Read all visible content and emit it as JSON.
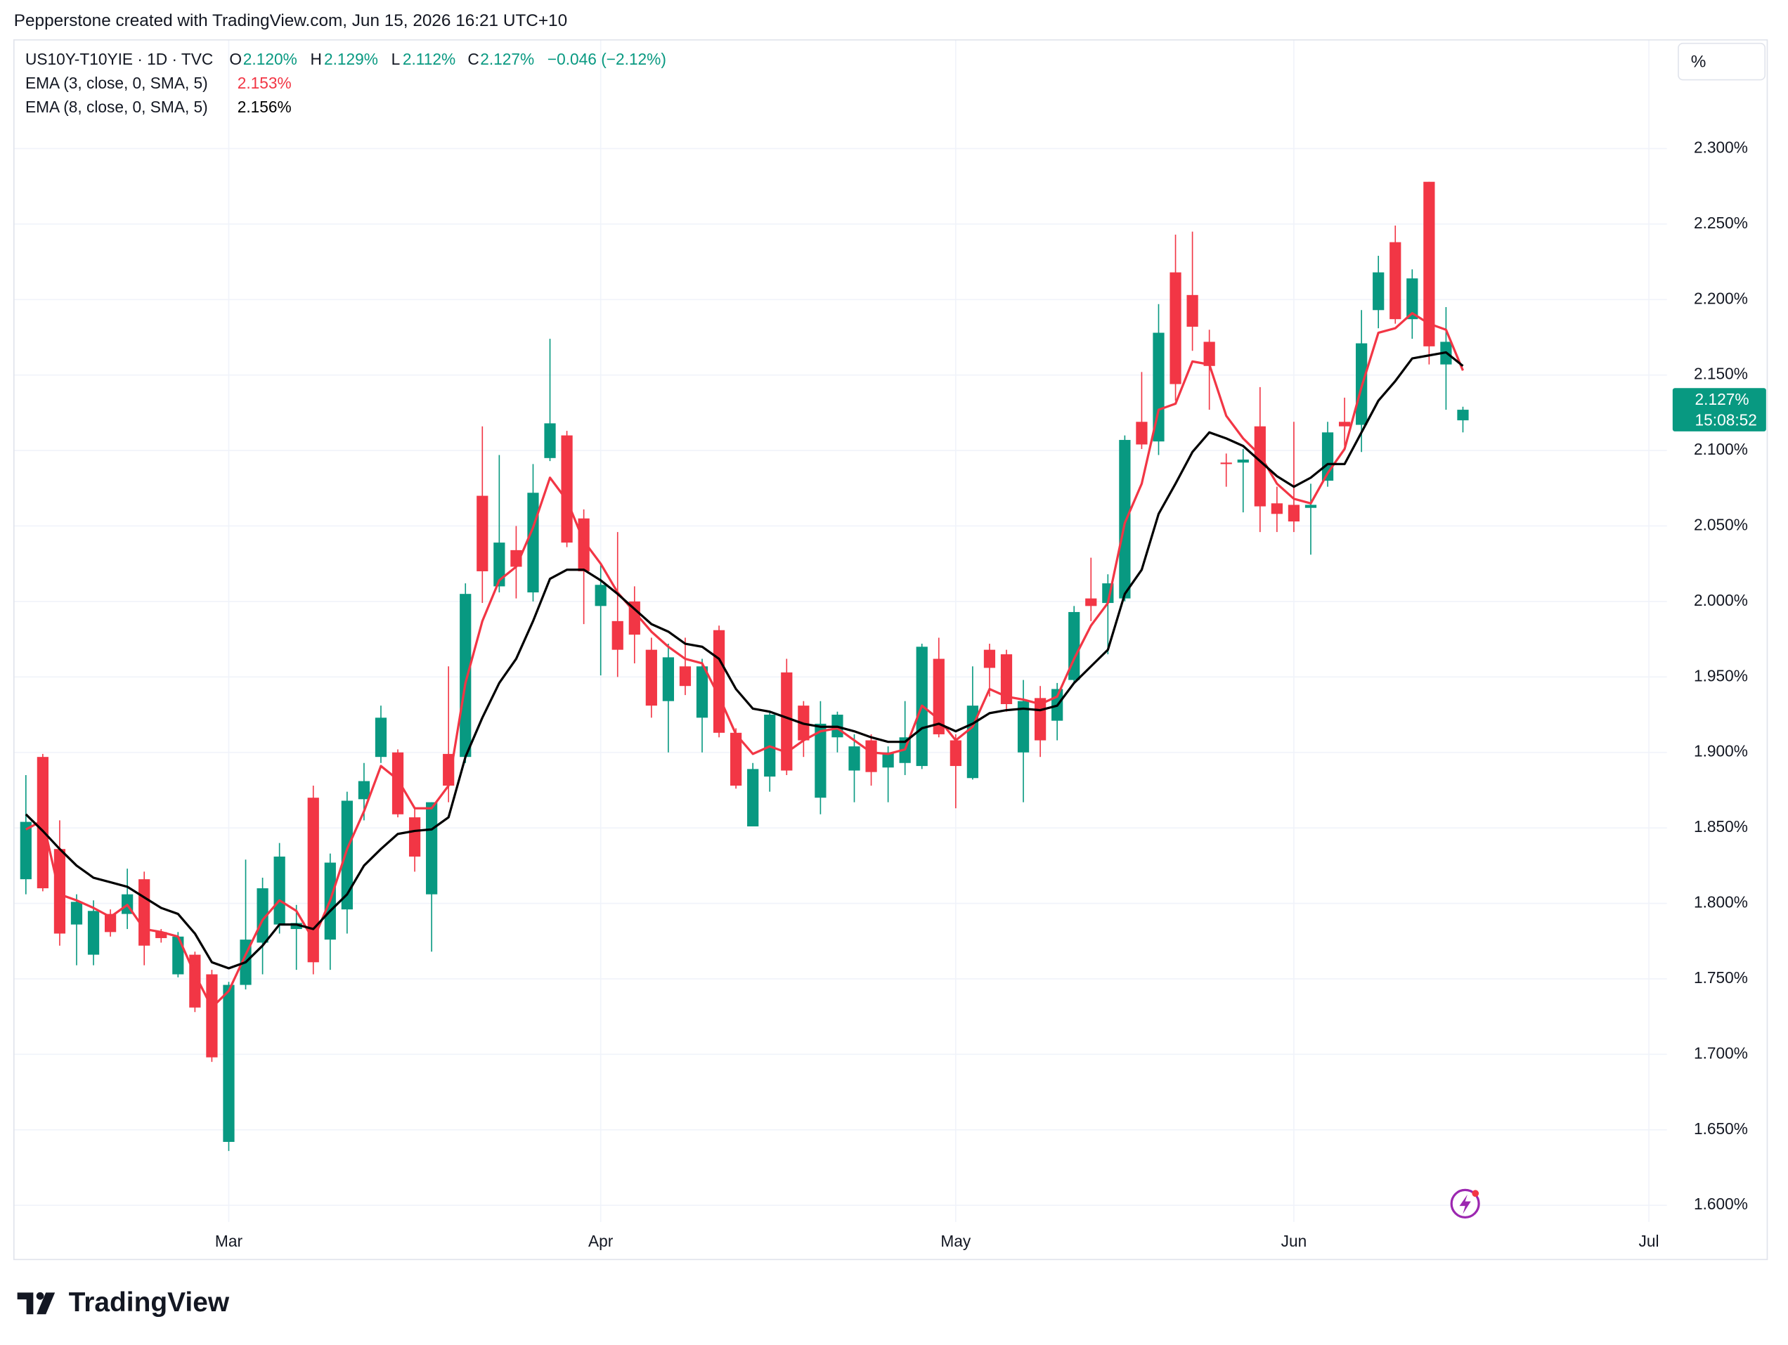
{
  "attribution": "Pepperstone created with TradingView.com, Jun 15, 2026 16:21 UTC+10",
  "brand": "TradingView",
  "chart_data": {
    "type": "candlestick",
    "symbol": "US10Y-T10YIE · 1D · TVC",
    "ohlc_legend": [
      {
        "key": "O",
        "label": "2.120%"
      },
      {
        "key": "H",
        "label": "2.129%"
      },
      {
        "key": "L",
        "label": "2.112%"
      },
      {
        "key": "C",
        "label": "2.127%"
      }
    ],
    "change": "−0.046 (−2.12%)",
    "axis_unit": "%",
    "up_color": "#089981",
    "down_color": "#f23645",
    "categories": [
      null,
      null,
      null,
      null,
      null,
      null,
      null,
      null,
      null,
      null,
      null,
      null,
      "Mar",
      null,
      null,
      null,
      null,
      null,
      null,
      null,
      null,
      null,
      null,
      null,
      null,
      null,
      null,
      null,
      null,
      null,
      null,
      null,
      null,
      null,
      "Apr",
      null,
      null,
      null,
      null,
      null,
      null,
      null,
      null,
      null,
      null,
      null,
      null,
      null,
      null,
      null,
      null,
      null,
      null,
      null,
      null,
      "May",
      null,
      null,
      null,
      null,
      null,
      null,
      null,
      null,
      null,
      null,
      null,
      null,
      null,
      null,
      null,
      null,
      null,
      null,
      null,
      "Jun",
      null,
      null,
      null,
      null,
      null,
      null,
      null,
      null,
      null,
      null,
      null,
      null,
      null,
      null,
      null,
      null,
      null,
      null,
      null,
      null,
      "Jul"
    ],
    "open": [
      1.816,
      1.897,
      1.836,
      1.786,
      1.766,
      1.793,
      1.793,
      1.816,
      1.781,
      1.753,
      1.766,
      1.753,
      1.642,
      1.746,
      1.774,
      1.786,
      1.783,
      1.87,
      1.776,
      1.796,
      1.869,
      1.897,
      1.9,
      1.857,
      1.806,
      1.899,
      1.897,
      2.07,
      2.01,
      2.034,
      2.006,
      2.095,
      2.11,
      2.055,
      1.997,
      1.987,
      2.0,
      1.968,
      1.934,
      1.957,
      1.923,
      1.981,
      1.913,
      1.851,
      1.884,
      1.953,
      1.931,
      1.87,
      1.91,
      1.888,
      1.908,
      1.89,
      1.893,
      1.891,
      1.962,
      1.908,
      1.883,
      1.968,
      1.965,
      1.9,
      1.936,
      1.921,
      1.948,
      2.002,
      1.999,
      2.002,
      2.119,
      2.106,
      2.218,
      2.203,
      2.172,
      2.092,
      2.092,
      2.116,
      2.065,
      2.064,
      2.062,
      2.08,
      2.119,
      2.117,
      2.193,
      2.238,
      2.187,
      2.278,
      2.157,
      2.12,
      null,
      null,
      null,
      null,
      null,
      null,
      null,
      null,
      null,
      null,
      null
    ],
    "high": [
      1.885,
      1.899,
      1.855,
      1.806,
      1.802,
      1.796,
      1.823,
      1.821,
      1.783,
      1.781,
      1.768,
      1.756,
      1.748,
      1.829,
      1.817,
      1.84,
      1.799,
      1.878,
      1.833,
      1.874,
      1.893,
      1.931,
      1.902,
      1.863,
      1.867,
      1.957,
      2.012,
      2.116,
      2.097,
      2.05,
      2.091,
      2.174,
      2.113,
      2.061,
      2.025,
      2.046,
      2.01,
      1.976,
      1.972,
      1.976,
      1.962,
      1.984,
      1.916,
      1.893,
      1.927,
      1.962,
      1.934,
      1.934,
      1.927,
      1.912,
      1.912,
      1.904,
      1.934,
      1.972,
      1.976,
      1.912,
      1.957,
      1.972,
      1.968,
      1.948,
      1.944,
      1.946,
      1.997,
      2.029,
      2.018,
      2.11,
      2.152,
      2.197,
      2.243,
      2.245,
      2.18,
      2.098,
      2.101,
      2.142,
      2.076,
      2.119,
      2.078,
      2.119,
      2.135,
      2.193,
      2.229,
      2.249,
      2.22,
      2.278,
      2.195,
      2.129,
      null,
      null,
      null,
      null,
      null,
      null,
      null,
      null,
      null,
      null,
      null
    ],
    "low": [
      1.806,
      1.808,
      1.772,
      1.759,
      1.759,
      1.778,
      1.783,
      1.759,
      1.774,
      1.751,
      1.728,
      1.695,
      1.636,
      1.743,
      1.753,
      1.78,
      1.756,
      1.753,
      1.756,
      1.78,
      1.855,
      1.893,
      1.857,
      1.821,
      1.768,
      1.867,
      1.893,
      1.999,
      2.006,
      2.002,
      2.0,
      2.093,
      2.036,
      1.985,
      1.951,
      1.95,
      1.959,
      1.923,
      1.9,
      1.938,
      1.9,
      1.91,
      1.876,
      1.851,
      1.874,
      1.885,
      1.897,
      1.859,
      1.9,
      1.867,
      1.878,
      1.867,
      1.885,
      1.889,
      1.91,
      1.863,
      1.882,
      1.937,
      1.927,
      1.867,
      1.897,
      1.908,
      1.946,
      1.987,
      1.965,
      2.0,
      2.101,
      2.097,
      2.133,
      2.166,
      2.127,
      2.076,
      2.059,
      2.046,
      2.046,
      2.046,
      2.031,
      2.076,
      2.103,
      2.099,
      2.181,
      2.184,
      2.174,
      2.157,
      2.127,
      2.112,
      null,
      null,
      null,
      null,
      null,
      null,
      null,
      null,
      null,
      null,
      null
    ],
    "close": [
      1.854,
      1.81,
      1.78,
      1.801,
      1.795,
      1.781,
      1.806,
      1.772,
      1.777,
      1.778,
      1.731,
      1.698,
      1.746,
      1.776,
      1.81,
      1.831,
      1.787,
      1.761,
      1.827,
      1.868,
      1.881,
      1.923,
      1.859,
      1.831,
      1.867,
      1.878,
      2.005,
      2.02,
      2.039,
      2.023,
      2.072,
      2.118,
      2.039,
      2.02,
      2.011,
      1.968,
      1.978,
      1.931,
      1.963,
      1.944,
      1.957,
      1.913,
      1.878,
      1.889,
      1.925,
      1.888,
      1.908,
      1.919,
      1.925,
      1.904,
      1.887,
      1.9,
      1.91,
      1.97,
      1.912,
      1.891,
      1.931,
      1.956,
      1.932,
      1.934,
      1.908,
      1.942,
      1.993,
      1.997,
      2.012,
      2.107,
      2.104,
      2.178,
      2.144,
      2.182,
      2.156,
      2.091,
      2.094,
      2.063,
      2.058,
      2.053,
      2.064,
      2.112,
      2.116,
      2.171,
      2.218,
      2.187,
      2.214,
      2.169,
      2.172,
      2.127,
      null,
      null,
      null,
      null,
      null,
      null,
      null,
      null,
      null,
      null,
      null
    ],
    "series": [
      {
        "name": "EMA (3, close, 0, SMA, 5)",
        "color": "#f23645",
        "last_label": "2.153%",
        "values": [
          1.849,
          1.855,
          1.806,
          1.802,
          1.797,
          1.791,
          1.799,
          1.783,
          1.781,
          1.778,
          1.753,
          1.731,
          1.742,
          1.766,
          1.789,
          1.802,
          1.795,
          1.776,
          1.802,
          1.836,
          1.861,
          1.891,
          1.882,
          1.863,
          1.863,
          1.878,
          1.946,
          1.987,
          2.014,
          2.023,
          2.049,
          2.082,
          2.067,
          2.04,
          2.025,
          2.006,
          1.993,
          1.98,
          1.97,
          1.962,
          1.959,
          1.937,
          1.912,
          1.899,
          1.904,
          1.9,
          1.908,
          1.914,
          1.916,
          1.908,
          1.9,
          1.899,
          1.902,
          1.931,
          1.922,
          1.908,
          1.917,
          1.942,
          1.937,
          1.935,
          1.932,
          1.937,
          1.962,
          1.984,
          1.999,
          2.052,
          2.078,
          2.127,
          2.131,
          2.159,
          2.157,
          2.123,
          2.108,
          2.097,
          2.078,
          2.068,
          2.065,
          2.085,
          2.101,
          2.142,
          2.178,
          2.181,
          2.191,
          2.184,
          2.18,
          2.153,
          null,
          null,
          null,
          null,
          null,
          null,
          null,
          null,
          null,
          null,
          null
        ]
      },
      {
        "name": "EMA (8, close, 0, SMA, 5)",
        "color": "#000000",
        "last_label": "2.156%",
        "values": [
          1.859,
          1.848,
          1.836,
          1.825,
          1.817,
          1.814,
          1.811,
          1.804,
          1.797,
          1.793,
          1.78,
          1.761,
          1.757,
          1.761,
          1.772,
          1.786,
          1.786,
          1.783,
          1.795,
          1.806,
          1.825,
          1.836,
          1.846,
          1.848,
          1.849,
          1.857,
          1.897,
          1.923,
          1.946,
          1.962,
          1.987,
          2.015,
          2.021,
          2.021,
          2.014,
          2.005,
          1.995,
          1.985,
          1.98,
          1.972,
          1.97,
          1.962,
          1.942,
          1.929,
          1.927,
          1.923,
          1.919,
          1.917,
          1.917,
          1.914,
          1.91,
          1.907,
          1.907,
          1.916,
          1.919,
          1.914,
          1.919,
          1.926,
          1.928,
          1.929,
          1.928,
          1.931,
          1.946,
          1.957,
          1.968,
          2.005,
          2.021,
          2.058,
          2.078,
          2.099,
          2.112,
          2.108,
          2.103,
          2.093,
          2.083,
          2.076,
          2.082,
          2.091,
          2.091,
          2.112,
          2.133,
          2.146,
          2.161,
          2.163,
          2.165,
          2.156,
          null,
          null,
          null,
          null,
          null,
          null,
          null,
          null,
          null,
          null,
          null
        ]
      }
    ],
    "ylim": [
      1.589,
      2.372
    ],
    "yticks": [
      {
        "value": 1.6,
        "label": "1.600%"
      },
      {
        "value": 1.65,
        "label": "1.650%"
      },
      {
        "value": 1.7,
        "label": "1.700%"
      },
      {
        "value": 1.75,
        "label": "1.750%"
      },
      {
        "value": 1.8,
        "label": "1.800%"
      },
      {
        "value": 1.85,
        "label": "1.850%"
      },
      {
        "value": 1.9,
        "label": "1.900%"
      },
      {
        "value": 1.95,
        "label": "1.950%"
      },
      {
        "value": 2.0,
        "label": "2.000%"
      },
      {
        "value": 2.05,
        "label": "2.050%"
      },
      {
        "value": 2.1,
        "label": "2.100%"
      },
      {
        "value": 2.15,
        "label": "2.150%"
      },
      {
        "value": 2.2,
        "label": "2.200%"
      },
      {
        "value": 2.25,
        "label": "2.250%"
      },
      {
        "value": 2.3,
        "label": "2.300%"
      }
    ],
    "grid": true,
    "price_marker": {
      "value": 2.127,
      "label": "2.127%",
      "countdown": "15:08:52"
    }
  }
}
